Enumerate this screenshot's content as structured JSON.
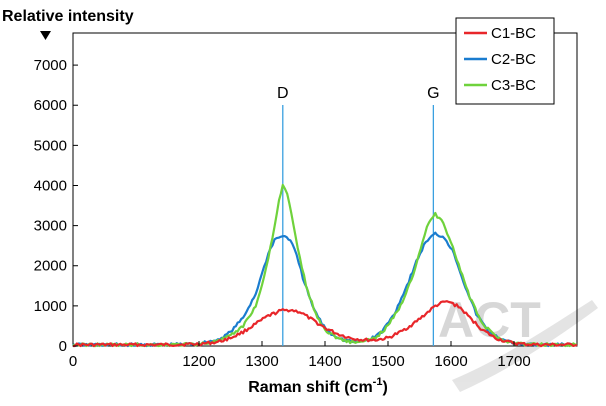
{
  "chart_data": {
    "type": "line",
    "title": "",
    "xlabel": "Raman shift (cm",
    "xlabel_sup": "-1",
    "xlabel_close": ")",
    "ylabel": "Relative intensity",
    "xlim": [
      1000,
      1800
    ],
    "ylim": [
      0,
      7800
    ],
    "x_axis_start_label": "0",
    "x_ticks": [
      1200,
      1300,
      1400,
      1500,
      1600,
      1700
    ],
    "y_ticks": [
      0,
      1000,
      2000,
      3000,
      4000,
      5000,
      6000,
      7000
    ],
    "grid": false,
    "legend_position": "top-right",
    "series": [
      {
        "name": "C1-BC",
        "color": "#e8262a",
        "x": [
          1000,
          1150,
          1200,
          1230,
          1250,
          1270,
          1290,
          1310,
          1330,
          1345,
          1360,
          1380,
          1400,
          1420,
          1440,
          1460,
          1480,
          1500,
          1520,
          1540,
          1560,
          1575,
          1590,
          1600,
          1615,
          1630,
          1650,
          1670,
          1690,
          1710,
          1740,
          1800
        ],
        "y": [
          30,
          30,
          50,
          100,
          200,
          350,
          550,
          750,
          880,
          900,
          850,
          650,
          450,
          300,
          200,
          150,
          150,
          200,
          350,
          550,
          800,
          1000,
          1100,
          1080,
          950,
          700,
          400,
          200,
          100,
          50,
          30,
          30
        ]
      },
      {
        "name": "C2-BC",
        "color": "#1a7ccf",
        "x": [
          1000,
          1150,
          1200,
          1230,
          1250,
          1270,
          1290,
          1300,
          1310,
          1320,
          1333,
          1345,
          1355,
          1365,
          1380,
          1395,
          1410,
          1430,
          1450,
          1470,
          1490,
          1510,
          1530,
          1545,
          1560,
          1575,
          1590,
          1605,
          1620,
          1640,
          1660,
          1680,
          1700,
          1730,
          1800
        ],
        "y": [
          30,
          30,
          60,
          150,
          350,
          700,
          1300,
          1800,
          2300,
          2650,
          2750,
          2650,
          2250,
          1700,
          1000,
          550,
          300,
          150,
          100,
          150,
          350,
          800,
          1500,
          2100,
          2600,
          2800,
          2700,
          2300,
          1600,
          800,
          350,
          150,
          70,
          30,
          30
        ]
      },
      {
        "name": "C3-BC",
        "color": "#6fd23c",
        "x": [
          1000,
          1150,
          1200,
          1230,
          1250,
          1270,
          1290,
          1300,
          1310,
          1320,
          1327,
          1333,
          1340,
          1350,
          1360,
          1370,
          1385,
          1400,
          1420,
          1440,
          1460,
          1480,
          1500,
          1520,
          1540,
          1555,
          1565,
          1575,
          1585,
          1600,
          1615,
          1630,
          1650,
          1670,
          1690,
          1720,
          1800
        ],
        "y": [
          30,
          30,
          50,
          120,
          250,
          500,
          1000,
          1500,
          2200,
          3000,
          3600,
          4000,
          3800,
          3000,
          2200,
          1500,
          800,
          400,
          200,
          100,
          100,
          200,
          500,
          1000,
          1800,
          2600,
          3100,
          3280,
          3150,
          2600,
          1900,
          1200,
          550,
          250,
          100,
          40,
          30
        ]
      }
    ],
    "annotations": [
      {
        "text": "D",
        "x": 1333
      },
      {
        "text": "G",
        "x": 1572
      }
    ]
  },
  "watermark": {
    "text": "ACT"
  }
}
